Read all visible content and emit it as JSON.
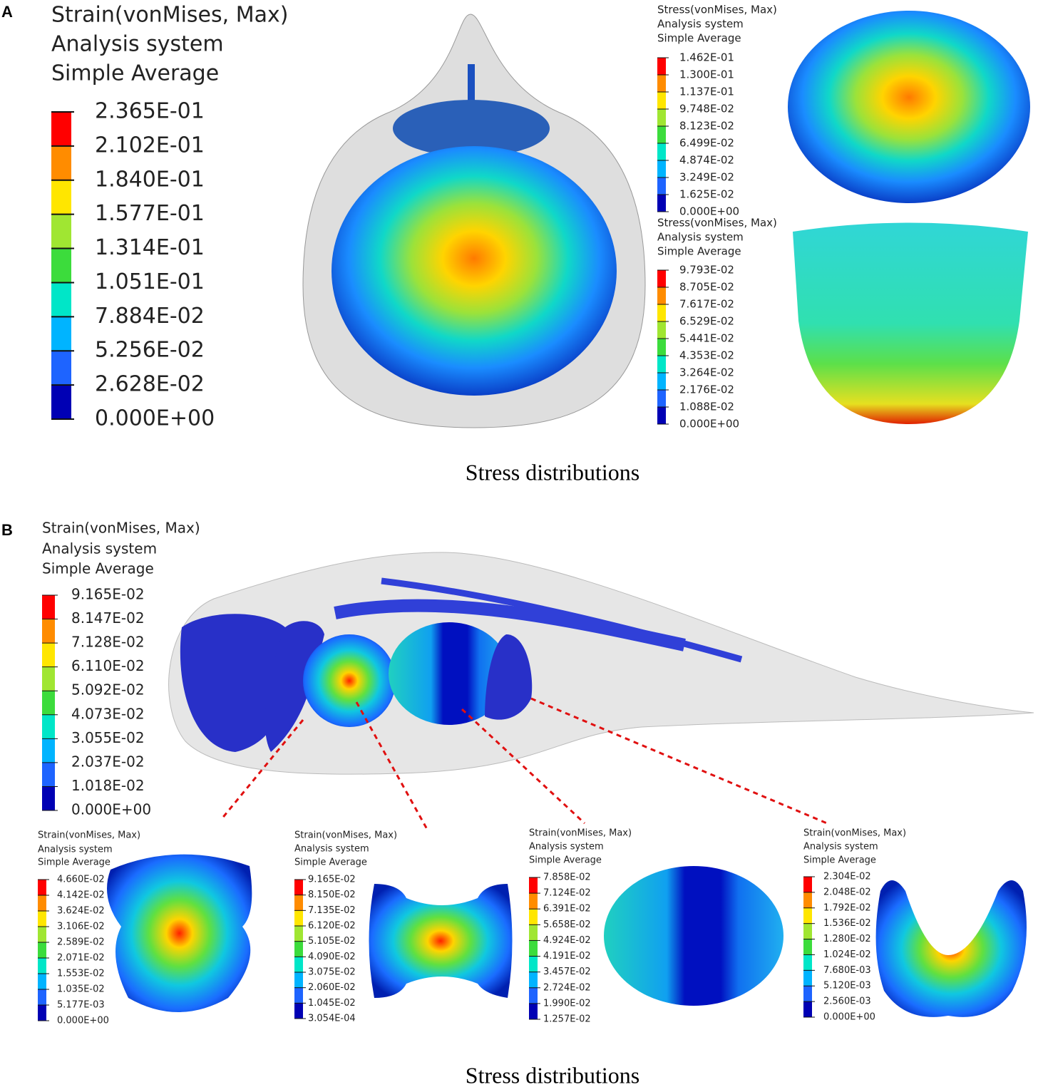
{
  "panel_a": {
    "label": "A",
    "legends": [
      {
        "lines": [
          "Strain(vonMises, Max)",
          "Analysis system",
          "Simple Average"
        ],
        "ticks": [
          "2.365E-01",
          "2.102E-01",
          "1.840E-01",
          "1.577E-01",
          "1.314E-01",
          "1.051E-01",
          "7.884E-02",
          "5.256E-02",
          "2.628E-02",
          "0.000E+00"
        ]
      },
      {
        "lines": [
          "Stress(vonMises, Max)",
          "Analysis system",
          "Simple Average"
        ],
        "ticks": [
          "1.462E-01",
          "1.300E-01",
          "1.137E-01",
          "9.748E-02",
          "8.123E-02",
          "6.499E-02",
          "4.874E-02",
          "3.249E-02",
          "1.625E-02",
          "0.000E+00"
        ]
      },
      {
        "lines": [
          "Stress(vonMises, Max)",
          "Analysis system",
          "Simple Average"
        ],
        "ticks": [
          "9.793E-02",
          "8.705E-02",
          "7.617E-02",
          "6.529E-02",
          "5.441E-02",
          "4.353E-02",
          "3.264E-02",
          "2.176E-02",
          "1.088E-02",
          "0.000E+00"
        ]
      }
    ],
    "caption": "Stress distributions"
  },
  "panel_b": {
    "label": "B",
    "legends": [
      {
        "lines": [
          "Strain(vonMises, Max)",
          "Analysis system",
          "Simple Average"
        ],
        "ticks": [
          "9.165E-02",
          "8.147E-02",
          "7.128E-02",
          "6.110E-02",
          "5.092E-02",
          "4.073E-02",
          "3.055E-02",
          "2.037E-02",
          "1.018E-02",
          "0.000E+00"
        ]
      },
      {
        "lines": [
          "Strain(vonMises, Max)",
          "Analysis system",
          "Simple Average"
        ],
        "ticks": [
          "4.660E-02",
          "4.142E-02",
          "3.624E-02",
          "3.106E-02",
          "2.589E-02",
          "2.071E-02",
          "1.553E-02",
          "1.035E-02",
          "5.177E-03",
          "0.000E+00"
        ]
      },
      {
        "lines": [
          "Strain(vonMises, Max)",
          "Analysis system",
          "Simple Average"
        ],
        "ticks": [
          "9.165E-02",
          "8.150E-02",
          "7.135E-02",
          "6.120E-02",
          "5.105E-02",
          "4.090E-02",
          "3.075E-02",
          "2.060E-02",
          "1.045E-02",
          "3.054E-04"
        ]
      },
      {
        "lines": [
          "Strain(vonMises, Max)",
          "Analysis system",
          "Simple Average"
        ],
        "ticks": [
          "7.858E-02",
          "7.124E-02",
          "6.391E-02",
          "5.658E-02",
          "4.924E-02",
          "4.191E-02",
          "3.457E-02",
          "2.724E-02",
          "1.990E-02",
          "1.257E-02"
        ]
      },
      {
        "lines": [
          "Strain(vonMises, Max)",
          "Analysis system",
          "Simple Average"
        ],
        "ticks": [
          "2.304E-02",
          "2.048E-02",
          "1.792E-02",
          "1.536E-02",
          "1.280E-02",
          "1.024E-02",
          "7.680E-03",
          "5.120E-03",
          "2.560E-03",
          "0.000E+00"
        ]
      }
    ],
    "caption": "Stress distributions"
  }
}
